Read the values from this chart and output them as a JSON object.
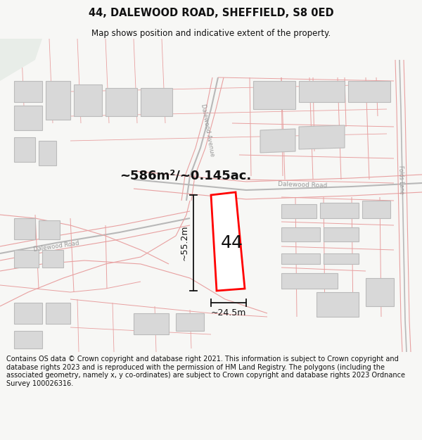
{
  "title": "44, DALEWOOD ROAD, SHEFFIELD, S8 0ED",
  "subtitle": "Map shows position and indicative extent of the property.",
  "footer": "Contains OS data © Crown copyright and database right 2021. This information is subject to Crown copyright and database rights 2023 and is reproduced with the permission of HM Land Registry. The polygons (including the associated geometry, namely x, y co-ordinates) are subject to Crown copyright and database rights 2023 Ordnance Survey 100026316.",
  "area_label": "~586m²/~0.145ac.",
  "property_number": "44",
  "dim_width": "~24.5m",
  "dim_height": "~55.2m",
  "bg_color": "#f7f7f5",
  "map_bg": "#ffffff",
  "line_color": "#e8a0a0",
  "road_outline_color": "#c8c8c8",
  "building_fill": "#d8d8d8",
  "building_stroke": "#bbbbbb",
  "property_fill": "#ffffff",
  "property_stroke": "#ff0000",
  "road_label_color": "#999999",
  "dim_color": "#111111",
  "green_fill": "#e8ede8",
  "title_fontsize": 10.5,
  "subtitle_fontsize": 8.5,
  "footer_fontsize": 7.0,
  "area_fontsize": 13,
  "dim_fontsize": 9,
  "label44_fontsize": 18
}
